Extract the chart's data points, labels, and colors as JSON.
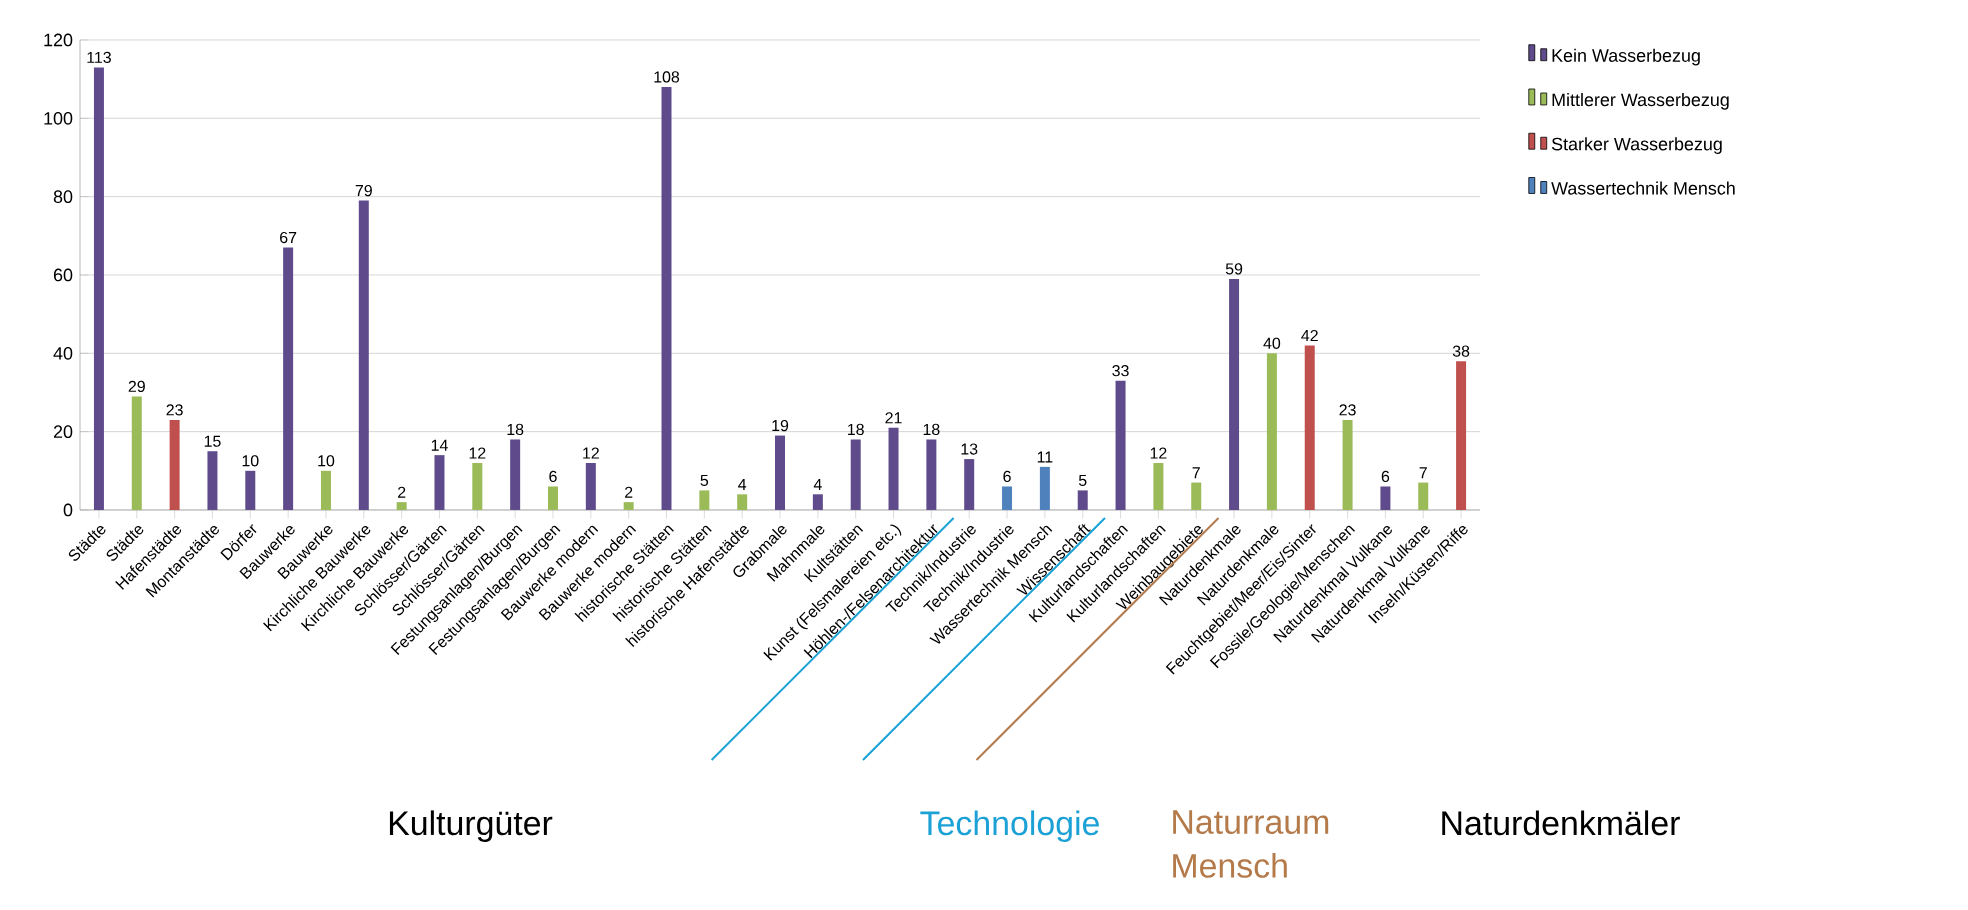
{
  "chart_data": {
    "type": "bar",
    "categories": [
      "Städte",
      "Städte",
      "Hafenstädte",
      "Montanstädte",
      "Dörfer",
      "Bauwerke",
      "Bauwerke",
      "Kirchliche Bauwerke",
      "Kirchliche Bauwerke",
      "Schlösser/Gärten",
      "Schlösser/Gärten",
      "Festungsanlagen/Burgen",
      "Festungsanlagen/Burgen",
      "Bauwerke modern",
      "Bauwerke modern",
      "historische Stätten",
      "historische Stätten",
      "historische Hafenstädte",
      "Grabmale",
      "Mahnmale",
      "Kultstätten",
      "Kunst (Felsmalereien etc.)",
      "Höhlen-/Felsenarchitektur",
      "Technik/Industrie",
      "Technik/Industrie",
      "Wassertechnik Mensch",
      "Wissenschaft",
      "Kulturlandschaften",
      "Kulturlandschaften",
      "Weinbaugebiete",
      "Naturdenkmale",
      "Naturdenkmale",
      "Feuchtgebiet/Meer/Eis/Sinter",
      "Fossile/Geologie/Menschen",
      "Naturdenkmal Vulkane",
      "Naturdenkmal Vulkane",
      "Inseln/Küsten/Riffe"
    ],
    "series": [
      {
        "name": "Kein Wasserbezug",
        "color": "#5f4b8b",
        "values": [
          113,
          null,
          null,
          15,
          10,
          67,
          null,
          79,
          null,
          14,
          null,
          18,
          null,
          12,
          null,
          108,
          null,
          null,
          19,
          4,
          18,
          21,
          18,
          13,
          null,
          null,
          5,
          33,
          null,
          null,
          59,
          null,
          null,
          null,
          6,
          null,
          null
        ]
      },
      {
        "name": "Mittlerer Wasserbezug",
        "color": "#9bbb59",
        "values": [
          null,
          29,
          null,
          null,
          null,
          null,
          10,
          null,
          2,
          null,
          12,
          null,
          6,
          null,
          2,
          null,
          5,
          4,
          null,
          null,
          null,
          null,
          null,
          null,
          null,
          null,
          null,
          null,
          12,
          7,
          null,
          40,
          null,
          23,
          null,
          7,
          null
        ]
      },
      {
        "name": "Starker Wasserbezug",
        "color": "#c0504d",
        "values": [
          null,
          null,
          23,
          null,
          null,
          null,
          null,
          null,
          null,
          null,
          null,
          null,
          null,
          null,
          null,
          null,
          null,
          null,
          null,
          null,
          null,
          null,
          null,
          null,
          null,
          null,
          null,
          null,
          null,
          null,
          null,
          null,
          42,
          null,
          null,
          null,
          38
        ]
      },
      {
        "name": "Wassertechnik Mensch",
        "color": "#4f81bd",
        "values": [
          null,
          null,
          null,
          null,
          null,
          null,
          null,
          null,
          null,
          null,
          null,
          null,
          null,
          null,
          null,
          null,
          null,
          null,
          null,
          null,
          null,
          null,
          null,
          null,
          6,
          11,
          null,
          null,
          null,
          null,
          null,
          null,
          null,
          null,
          null,
          null,
          null
        ]
      }
    ],
    "ylim": [
      0,
      120
    ],
    "yticks": [
      0,
      20,
      40,
      60,
      80,
      100,
      120
    ],
    "grid": "y",
    "legend": "top right",
    "data_labels": true,
    "annotations": [
      "Kulturgüter",
      "Technologie",
      "Naturraum Mensch",
      "Naturdenkmäler"
    ]
  }
}
